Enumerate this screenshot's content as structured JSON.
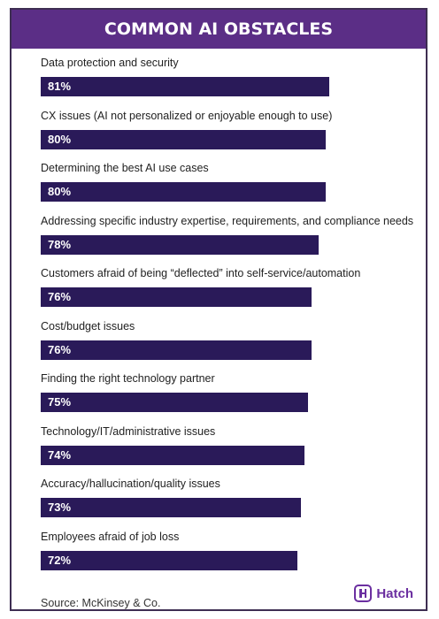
{
  "title": "COMMON AI OBSTACLES",
  "source": "Source: McKinsey & Co.",
  "logo": {
    "text": "Hatch",
    "icon": "hatch-logo-icon"
  },
  "colors": {
    "title_bg": "#5b2e86",
    "bar": "#2a1a59",
    "border": "#3e2e52",
    "logo": "#6b2fa0"
  },
  "chart_data": {
    "type": "bar",
    "orientation": "horizontal",
    "title": "COMMON AI OBSTACLES",
    "categories": [
      "Data protection and security",
      "CX issues (AI not personalized or enjoyable enough to use)",
      "Determining the best AI use cases",
      "Addressing specific industry expertise, requirements, and compliance needs",
      "Customers afraid of being “deflected” into self-service/automation",
      "Cost/budget issues",
      "Finding the right technology partner",
      "Technology/IT/administrative issues",
      "Accuracy/hallucination/quality issues",
      "Employees afraid of job loss"
    ],
    "values": [
      81,
      80,
      80,
      78,
      76,
      76,
      75,
      74,
      73,
      72
    ],
    "value_labels": [
      "81%",
      "80%",
      "80%",
      "78%",
      "76%",
      "76%",
      "75%",
      "74%",
      "73%",
      "72%"
    ],
    "unit": "%",
    "xlim": [
      0,
      100
    ],
    "grid": false,
    "legend": "none"
  }
}
